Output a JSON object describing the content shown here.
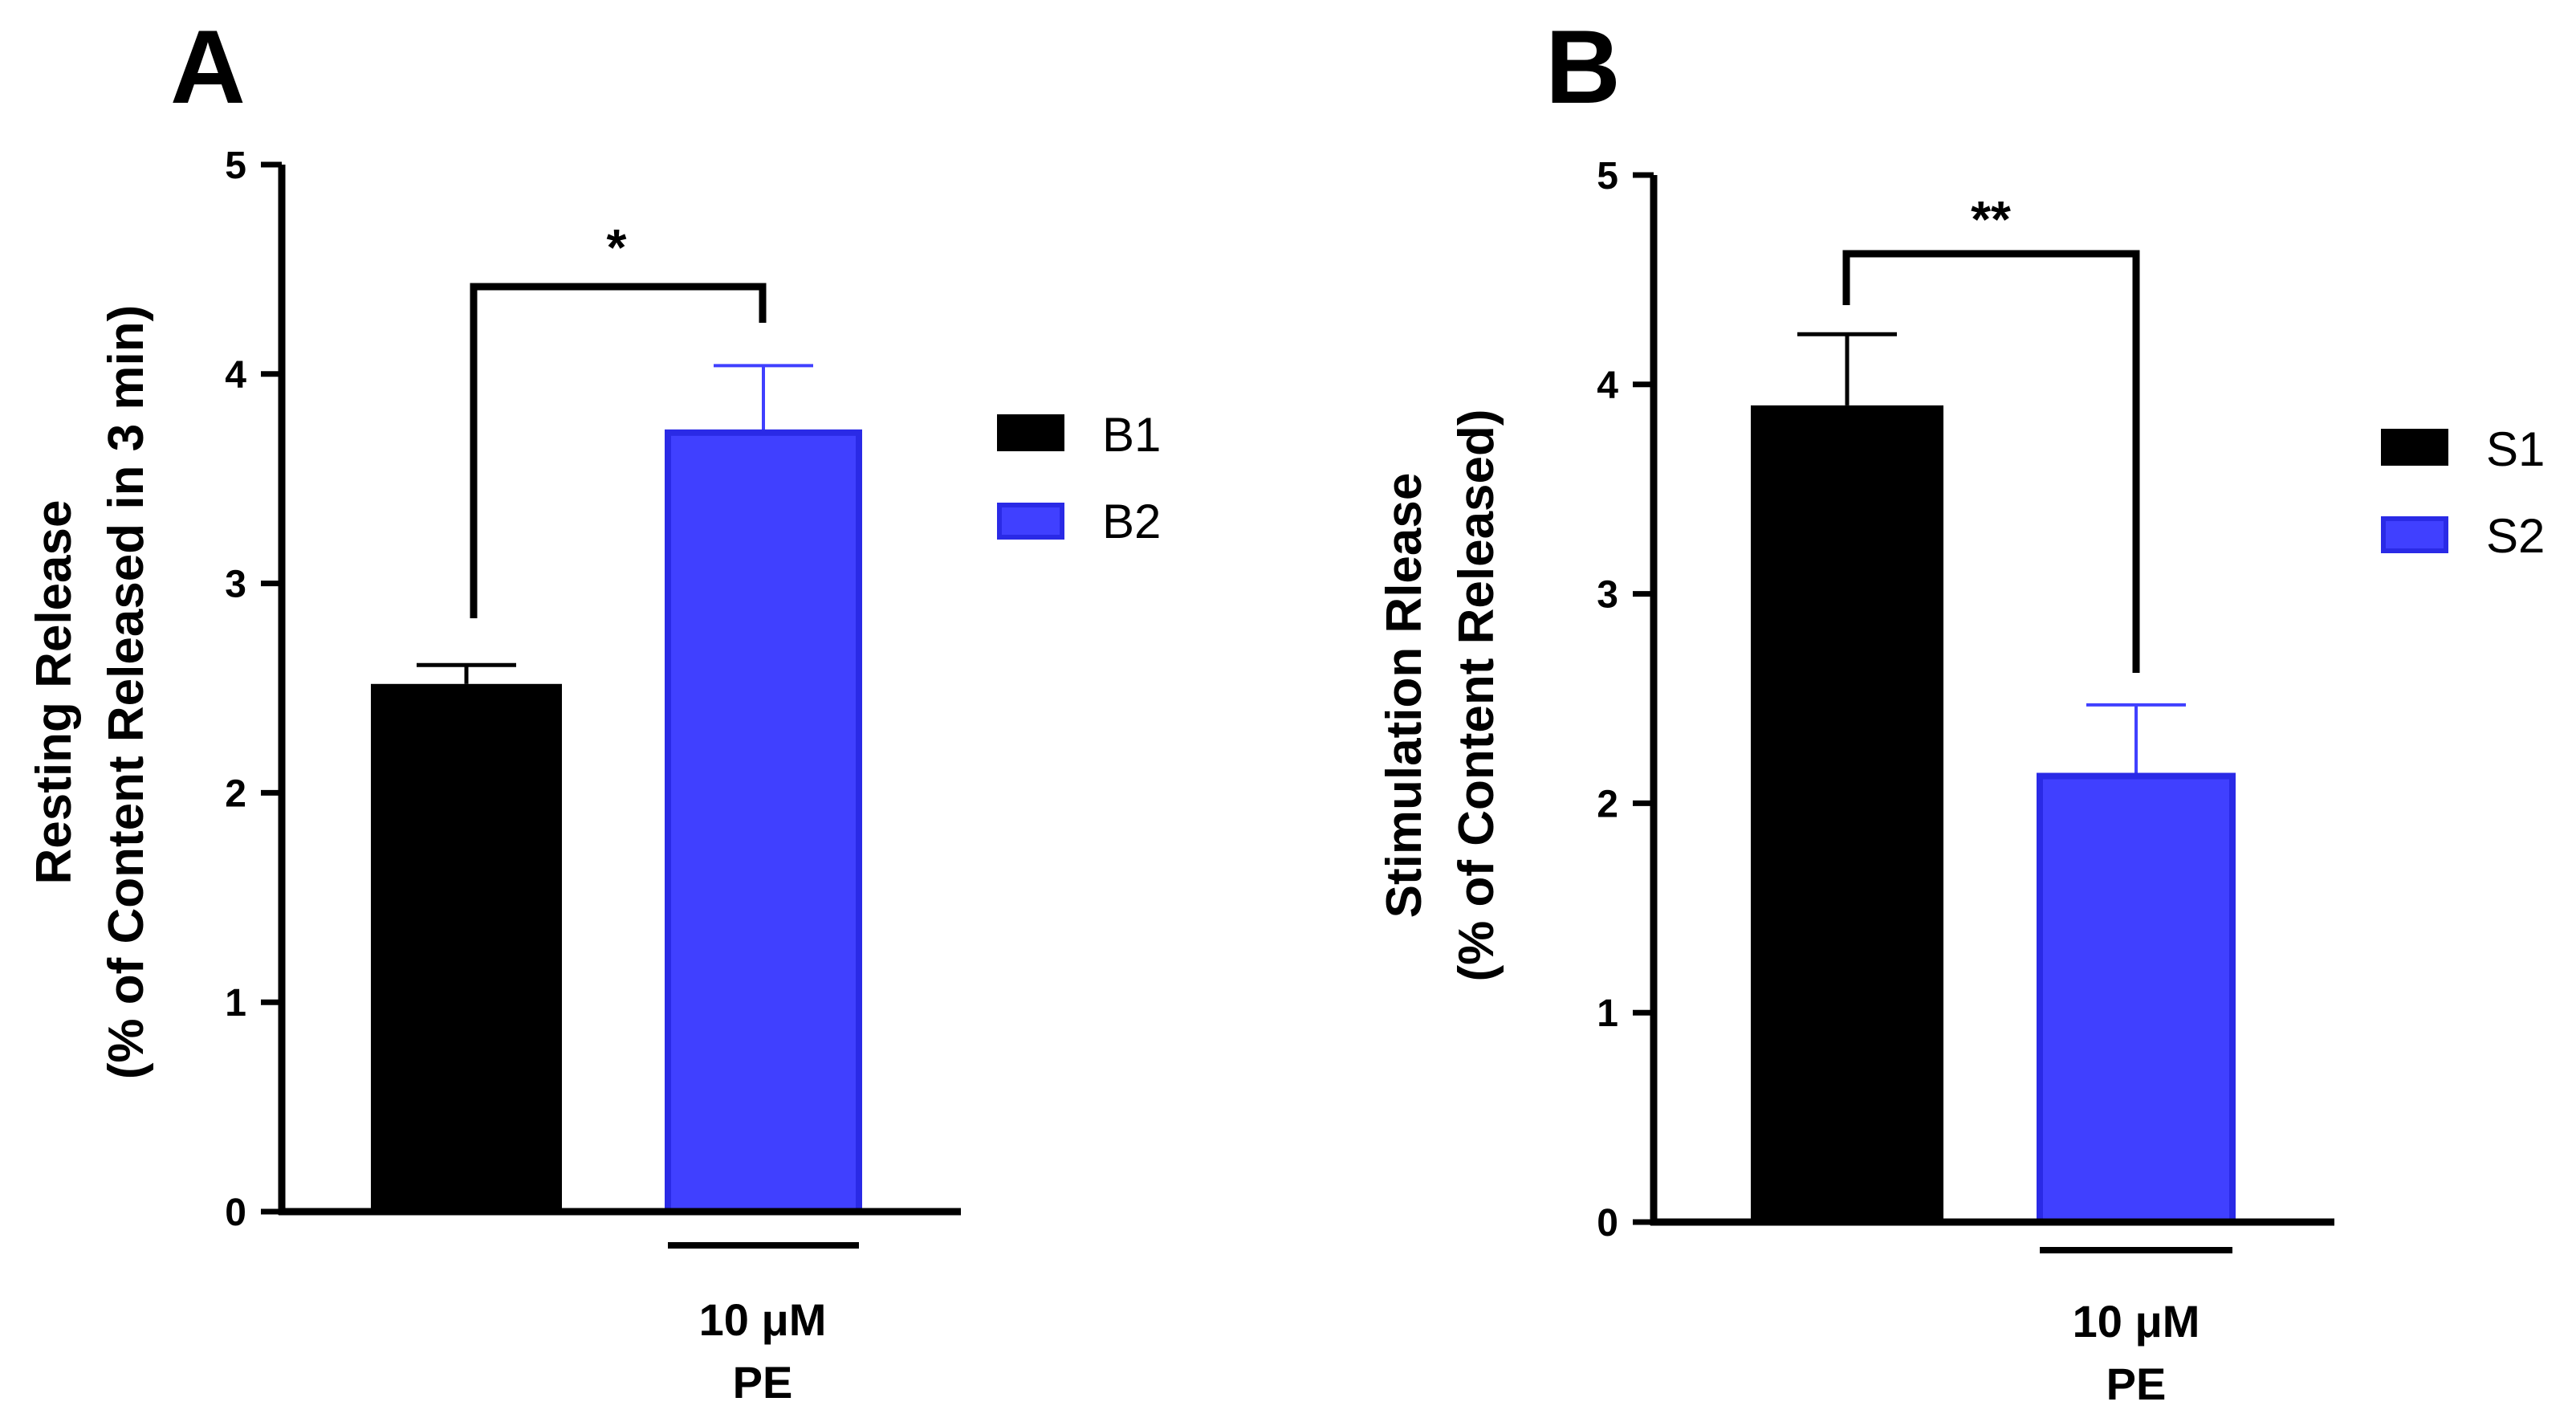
{
  "chart_data": [
    {
      "type": "bar",
      "panel_label": "A",
      "categories": [
        "B1",
        "B2"
      ],
      "values": [
        2.52,
        3.72
      ],
      "errors": [
        0.09,
        0.32
      ],
      "colors": [
        "#000000",
        "#4040ff"
      ],
      "ylabel_line1": "Resting Release",
      "ylabel_line2": "(% of Content Released in 3 min)",
      "ylim": [
        0,
        5
      ],
      "yticks": [
        "0",
        "1",
        "2",
        "3",
        "4",
        "5"
      ],
      "legend": [
        "B1",
        "B2"
      ],
      "legend_position": "right",
      "significance": "*",
      "treatment_line1": "10 μM",
      "treatment_line2": "PE"
    },
    {
      "type": "bar",
      "panel_label": "B",
      "categories": [
        "S1",
        "S2"
      ],
      "values": [
        3.9,
        2.13
      ],
      "errors": [
        0.34,
        0.34
      ],
      "colors": [
        "#000000",
        "#4040ff"
      ],
      "ylabel_line1": "Stimulation Rlease",
      "ylabel_line2": "(% of Content Released)",
      "ylim": [
        0,
        5
      ],
      "yticks": [
        "0",
        "1",
        "2",
        "3",
        "4",
        "5"
      ],
      "legend": [
        "S1",
        "S2"
      ],
      "legend_position": "right",
      "significance": "**",
      "treatment_line1": "10 μM",
      "treatment_line2": "PE"
    }
  ]
}
